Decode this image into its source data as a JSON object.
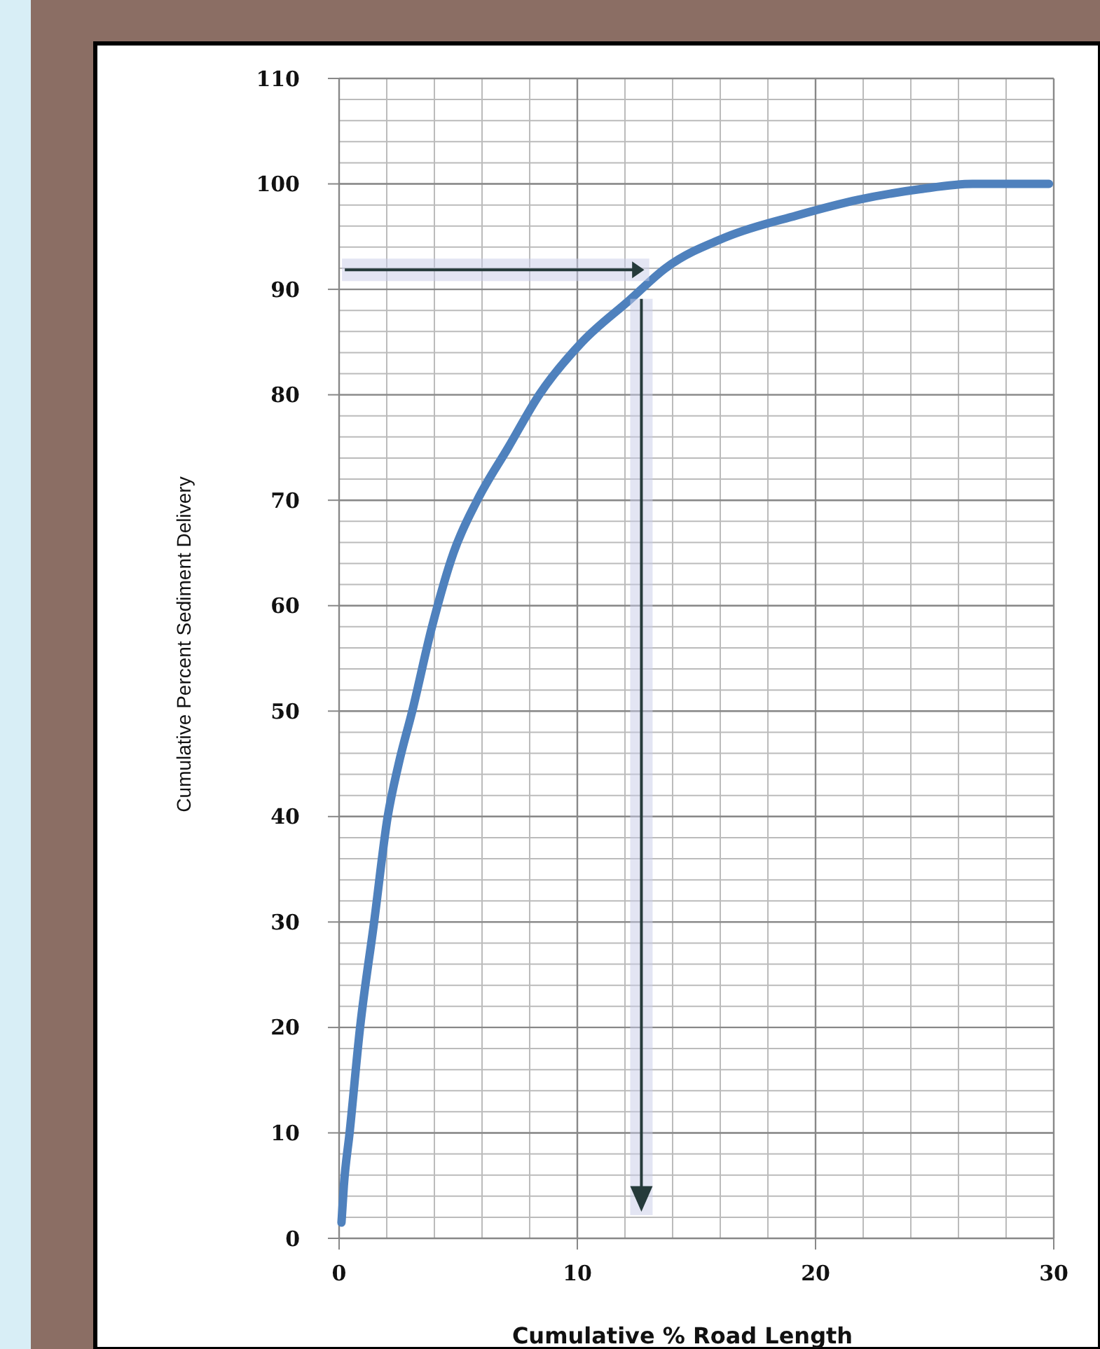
{
  "chart_data": {
    "type": "line",
    "xlabel": "Cumulative % Road Length",
    "ylabel": "Cumulative Percent Sediment Delivery",
    "xlim": [
      0,
      30
    ],
    "xticks": [
      0,
      10,
      20,
      30
    ],
    "ylim": [
      0,
      110
    ],
    "yticks": [
      0,
      10,
      20,
      30,
      40,
      50,
      60,
      70,
      80,
      90,
      100,
      110
    ],
    "grid": true,
    "series": [
      {
        "color": "#4f81bd",
        "x": [
          0.1,
          0.2,
          0.44,
          0.88,
          1.47,
          2.04,
          2.5,
          3.07,
          3.9,
          4.8,
          5.8,
          7.1,
          8.4,
          10.2,
          12.2,
          13.7,
          16.3,
          19.2,
          21.8,
          24.4,
          26.6,
          29.8
        ],
        "values": [
          1.5,
          5,
          10,
          20,
          30,
          40,
          45,
          50,
          58,
          65,
          70,
          75,
          80,
          85,
          89,
          92,
          95,
          97,
          98.5,
          99.5,
          100,
          100
        ]
      }
    ]
  }
}
